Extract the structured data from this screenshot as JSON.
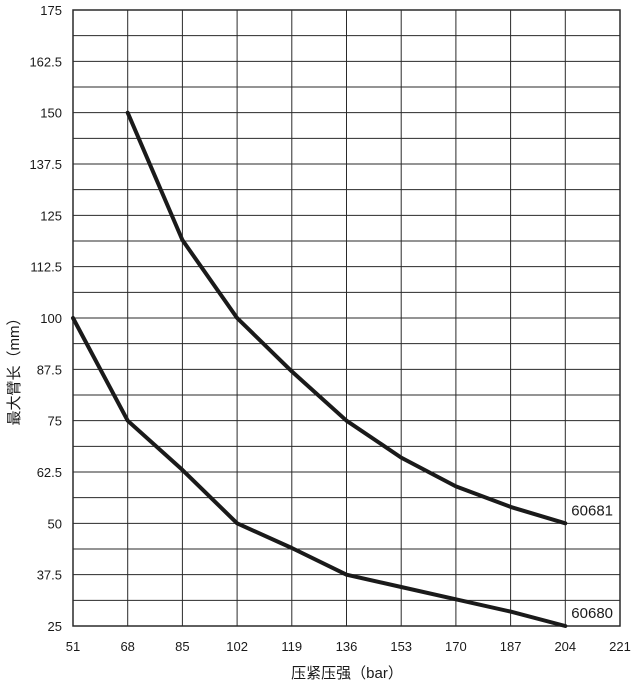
{
  "chart_data": {
    "type": "line",
    "title": "",
    "xlabel": "压紧压强（bar）",
    "ylabel": "最大臂长（mm）",
    "xlim": [
      51,
      221
    ],
    "ylim": [
      25,
      175
    ],
    "x_ticks": [
      "51",
      "68",
      "85",
      "102",
      "119",
      "136",
      "153",
      "170",
      "187",
      "204",
      "221"
    ],
    "y_ticks": [
      "25",
      "37.5",
      "50",
      "62.5",
      "75",
      "87.5",
      "100",
      "112.5",
      "125",
      "137.5",
      "150",
      "162.5",
      "175"
    ],
    "grid": true,
    "series": [
      {
        "name": "60681",
        "x": [
          68,
          85,
          102,
          119,
          136,
          153,
          170,
          187,
          204
        ],
        "y": [
          150,
          119,
          100,
          87,
          75,
          66,
          59,
          54,
          50
        ]
      },
      {
        "name": "60680",
        "x": [
          51,
          68,
          85,
          102,
          119,
          136,
          153,
          170,
          187,
          204
        ],
        "y": [
          100,
          75,
          63,
          50,
          44,
          37.5,
          34.5,
          31.5,
          28.5,
          25
        ]
      }
    ]
  },
  "colors": {
    "line": "#1a1a1a",
    "grid": "#2a2a2a",
    "background": "#ffffff"
  }
}
